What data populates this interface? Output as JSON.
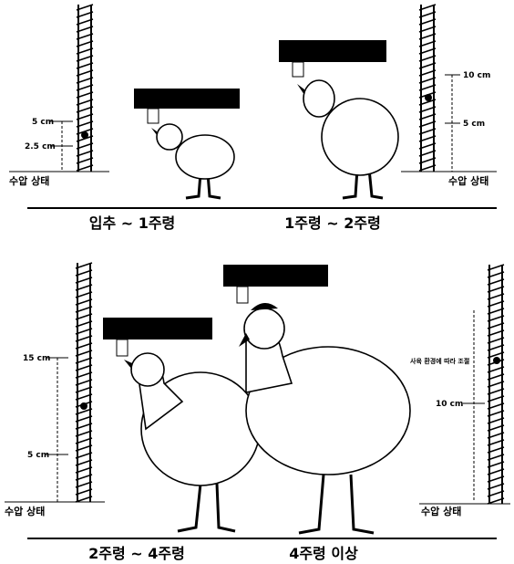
{
  "top": {
    "left_gauge": {
      "labels": [
        "5 cm",
        "2.5 cm"
      ],
      "base": "수압 상태"
    },
    "right_gauge": {
      "labels": [
        "10 cm",
        "5 cm"
      ],
      "base": "수압 상태"
    },
    "captions": [
      "입추 ~ 1주령",
      "1주령 ~ 2주령"
    ]
  },
  "bottom": {
    "left_gauge": {
      "labels": [
        "15 cm",
        "5 cm"
      ],
      "base": "수압 상태"
    },
    "right_gauge": {
      "note": "사육 환경에 따라 조절",
      "labels": [
        "10 cm"
      ],
      "base": "수압 상태"
    },
    "captions": [
      "2주령 ~ 4주령",
      "4주령 이상"
    ]
  }
}
